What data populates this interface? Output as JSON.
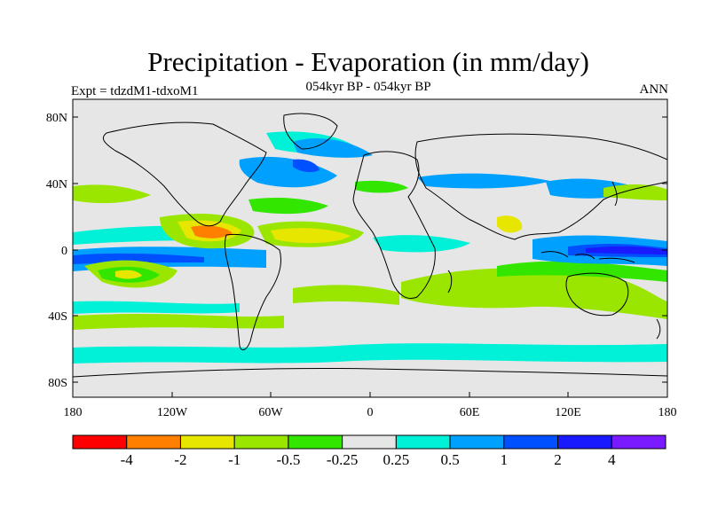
{
  "title": "Precipitation - Evaporation (in mm/day)",
  "subtitle": "054kyr BP - 054kyr BP",
  "left_label": "Expt = tdzdM1-tdxoM1",
  "right_label": "ANN",
  "lat_ticks": [
    "80N",
    "40N",
    "0",
    "40S",
    "80S"
  ],
  "lon_ticks": [
    "180",
    "120W",
    "60W",
    "0",
    "60E",
    "120E",
    "180"
  ],
  "colorbar": {
    "colors": [
      "#ff0000",
      "#ff7f00",
      "#e6e600",
      "#9ae600",
      "#33e600",
      "#e6e6e6",
      "#00f0d8",
      "#00a0ff",
      "#0050ff",
      "#1a1aff",
      "#7a1aff"
    ],
    "labels": [
      "-4",
      "-2",
      "-1",
      "-0.5",
      "-0.25",
      "0.25",
      "0.5",
      "1",
      "2",
      "4"
    ]
  },
  "colors": {
    "ocean_neutral": "#e6e6e6",
    "land": "#e6e6e6",
    "coastline": "#000000"
  }
}
